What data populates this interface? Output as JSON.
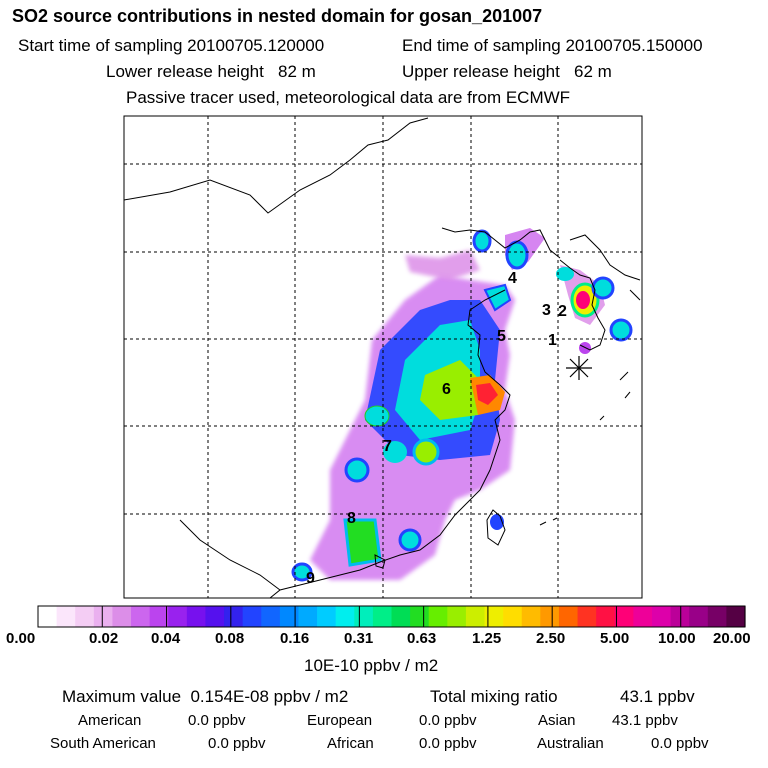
{
  "header": {
    "title": "SO2 source contributions in nested domain for gosan_201007",
    "start_label": "Start time of sampling 20100705.120000",
    "end_label": "End time of sampling 20100705.150000",
    "lower_label": "Lower release height   82 m",
    "upper_label": "Upper release height   62 m",
    "note": "Passive tracer used, meteorological data are from ECMWF"
  },
  "map": {
    "release_labels": [
      "1",
      "2",
      "3",
      "4",
      "5",
      "6",
      "7",
      "8",
      "9"
    ],
    "receptor_marker": "asterisk-icon"
  },
  "chart_data": {
    "type": "heatmap",
    "title": "SO2 source contributions in nested domain for gosan_201007",
    "colorbar": {
      "tick_labels": [
        "0.00",
        "0.02",
        "0.04",
        "0.08",
        "0.16",
        "0.31",
        "0.63",
        "1.25",
        "2.50",
        "5.00",
        "10.00",
        "20.00"
      ],
      "unit": "10E-10 ppbv / m2",
      "colors": [
        "#ffffff",
        "#fbe6fb",
        "#f4cdf4",
        "#eab0ef",
        "#dc8ee8",
        "#cc66ee",
        "#bb44ee",
        "#9922ee",
        "#7711ee",
        "#5511ee",
        "#3322ee",
        "#2244ff",
        "#1166ff",
        "#0088ff",
        "#00aaff",
        "#00ccff",
        "#00eeee",
        "#00eebb",
        "#00ee88",
        "#00dd55",
        "#22dd22",
        "#66ee00",
        "#99ee00",
        "#ccee00",
        "#eeee00",
        "#ffdd00",
        "#ffbb00",
        "#ff9900",
        "#ff6600",
        "#ff3322",
        "#ff1144",
        "#ff0077",
        "#ee0099",
        "#dd00aa",
        "#bb0099",
        "#990088",
        "#770066",
        "#550044"
      ]
    },
    "max_value": "0.154E-08",
    "total_mixing_ratio": "43.1"
  },
  "footer": {
    "max_label": "Maximum value  0.154E-08 ppbv / m2",
    "total_label": "Total mixing ratio",
    "total_value": "43.1 ppbv",
    "american_label": "American",
    "american_value": "0.0 ppbv",
    "european_label": "European",
    "european_value": "0.0 ppbv",
    "asian_label": "Asian",
    "asian_value": "43.1 ppbv",
    "south_american_label": "South American",
    "south_american_value": "0.0 ppbv",
    "african_label": "African",
    "african_value": "0.0 ppbv",
    "australian_label": "Australian",
    "australian_value": "0.0 ppbv"
  }
}
